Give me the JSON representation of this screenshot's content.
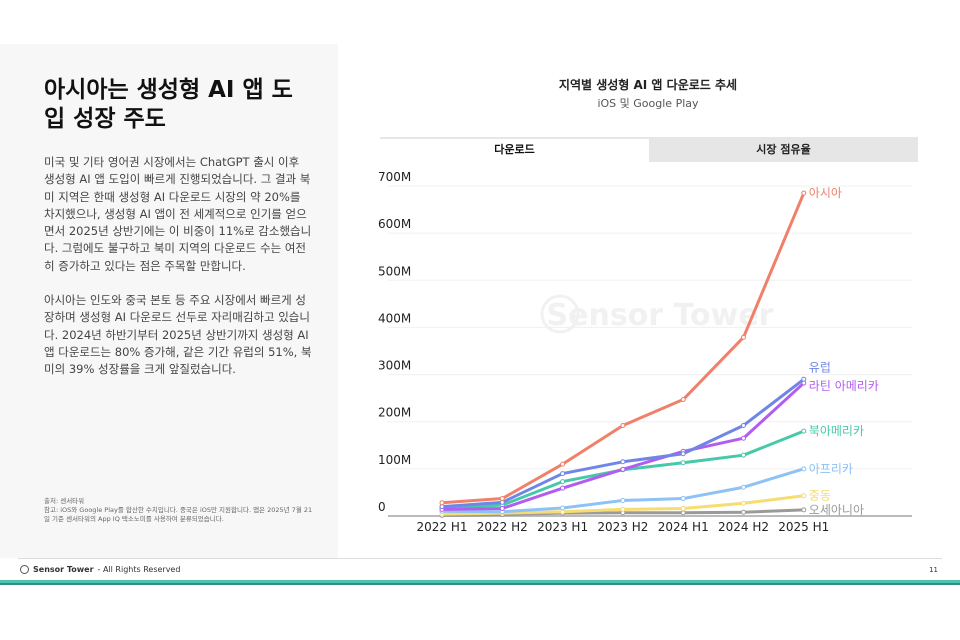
{
  "left": {
    "title": "아시아는 생성형 AI 앱 도입 성장 주도",
    "paragraphs": [
      "미국 및 기타 영어권 시장에서는 ChatGPT 출시 이후 생성형 AI 앱 도입이 빠르게 진행되었습니다. 그 결과 북미 지역은 한때 생성형 AI 다운로드 시장의 약 20%를 차지했으나, 생성형 AI 앱이 전 세계적으로 인기를 얻으면서 2025년 상반기에는 이 비중이 11%로 감소했습니다. 그럼에도 불구하고 북미 지역의 다운로드 수는 여전히 증가하고 있다는 점은 주목할 만합니다.",
      "아시아는 인도와 중국 본토 등 주요 시장에서 빠르게 성장하며 생성형 AI 다운로드 선두로 자리매김하고 있습니다. 2024년 하반기부터 2025년 상반기까지 생성형 AI 앱 다운로드는 80% 증가해, 같은 기간 유럽의 51%, 북미의 39% 성장률을 크게 앞질렀습니다."
    ],
    "source": "출처: 센서타워",
    "note": "참고: iOS와 Google Play를 합산한 수치입니다. 중국은 iOS만 지원합니다. 앱은 2025년 7월 21일 기준 센서타워의 App IQ 택소노미를 사용하여 분류되었습니다."
  },
  "footer": {
    "brand": "Sensor Tower",
    "rights": "- All Rights Reserved",
    "page": "11",
    "accent": "#4fc3b0"
  },
  "tabs": [
    {
      "label": "다운로드",
      "active": true
    },
    {
      "label": "시장 점유율",
      "active": false
    }
  ],
  "watermark": "Sensor Tower",
  "chart_data": {
    "type": "line",
    "title": "지역별 생성형 AI 앱 다운로드 추세",
    "subtitle": "iOS 및 Google Play",
    "categories": [
      "2022 H1",
      "2022 H2",
      "2023 H1",
      "2023 H2",
      "2024 H1",
      "2024 H2",
      "2025 H1"
    ],
    "ylim": [
      0,
      700
    ],
    "yticks": [
      0,
      100,
      200,
      300,
      400,
      500,
      600,
      700
    ],
    "ytick_labels": [
      "0",
      "100M",
      "200M",
      "300M",
      "400M",
      "500M",
      "600M",
      "700M"
    ],
    "grid": true,
    "legend": "end-labels",
    "series": [
      {
        "name": "아시아",
        "color": "#f0806a",
        "values": [
          28,
          37,
          110,
          192,
          247,
          379,
          685
        ]
      },
      {
        "name": "유럽",
        "color": "#6f86e6",
        "values": [
          20,
          29,
          90,
          115,
          132,
          192,
          290
        ]
      },
      {
        "name": "라틴 아메리카",
        "color": "#b35cf2",
        "values": [
          14,
          16,
          59,
          99,
          137,
          165,
          282
        ]
      },
      {
        "name": "북아메리카",
        "color": "#45c9a8",
        "values": [
          18,
          23,
          73,
          98,
          113,
          129,
          180
        ]
      },
      {
        "name": "아프리카",
        "color": "#8cc2f5",
        "values": [
          10,
          9,
          17,
          33,
          37,
          61,
          100
        ]
      },
      {
        "name": "중동",
        "color": "#f7dc6f",
        "values": [
          4,
          6,
          9,
          14,
          16,
          27,
          43
        ]
      },
      {
        "name": "오세아니아",
        "color": "#9a9a9a",
        "values": [
          1,
          3,
          6,
          7,
          7,
          8,
          13
        ]
      }
    ]
  }
}
